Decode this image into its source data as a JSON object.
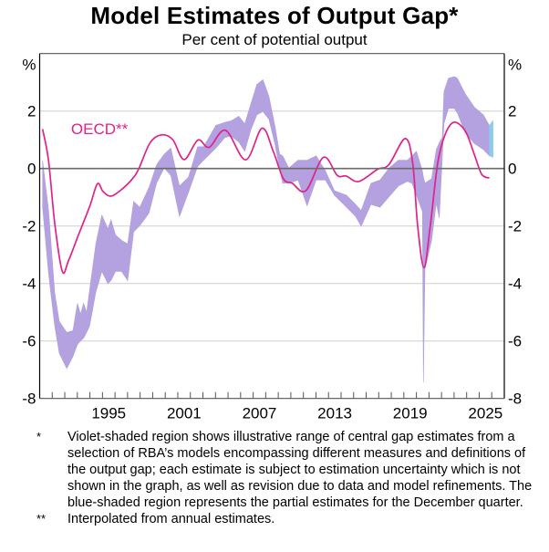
{
  "title": "Model Estimates of Output Gap*",
  "subtitle": "Per cent of potential output",
  "chart_data": {
    "type": "area",
    "title": "Model Estimates of Output Gap*",
    "subtitle": "Per cent of potential output",
    "xlabel": "",
    "ylabel": "%",
    "ylabel_right": "%",
    "xlim": [
      1990,
      2027
    ],
    "ylim": [
      -8,
      4
    ],
    "grid": true,
    "x_tick_labels": [
      "1995",
      "2001",
      "2007",
      "2013",
      "2019",
      "2025"
    ],
    "y_tick_labels": [
      "2",
      "0",
      "-2",
      "-4",
      "-6",
      "-8"
    ],
    "y_ticks": [
      2,
      0,
      -2,
      -4,
      -6,
      -8
    ],
    "colors": {
      "violet_band": "#b3a1e0",
      "blue_band": "#8ccbeb",
      "oecd_line": "#e0228a",
      "zero_line": "#6b6b6b",
      "grid": "#cfcfcf"
    },
    "series": [
      {
        "name": "Range of RBA model estimates",
        "kind": "band",
        "points": [
          [
            1990.23,
            -1.35,
            0.29
          ],
          [
            1990.71,
            -3.68,
            -1.46
          ],
          [
            1991.2,
            -5.48,
            -4.32
          ],
          [
            1991.56,
            -6.43,
            -5.32
          ],
          [
            1992.16,
            -6.96,
            -5.7
          ],
          [
            1992.65,
            -6.54,
            -5.64
          ],
          [
            1993.01,
            -6.12,
            -4.69
          ],
          [
            1993.25,
            -6.0,
            -5.06
          ],
          [
            1993.5,
            -5.9,
            -4.69
          ],
          [
            1993.74,
            -5.7,
            -5.0
          ],
          [
            1993.98,
            -5.48,
            -4.21
          ],
          [
            1994.47,
            -4.3,
            -2.62
          ],
          [
            1994.95,
            -3.58,
            -1.62
          ],
          [
            1995.43,
            -4.0,
            -2.1
          ],
          [
            1995.68,
            -3.9,
            -1.78
          ],
          [
            1996.04,
            -3.58,
            -2.31
          ],
          [
            1996.52,
            -3.58,
            -2.5
          ],
          [
            1997.01,
            -3.9,
            -2.62
          ],
          [
            1997.49,
            -2.2,
            -1.14
          ],
          [
            1997.97,
            -1.99,
            -1.35
          ],
          [
            1998.7,
            -1.56,
            -0.67
          ],
          [
            1999.31,
            -0.51,
            0.13
          ],
          [
            1999.91,
            0.02,
            0.5
          ],
          [
            2000.44,
            -0.24,
            0.71
          ],
          [
            2001.13,
            -1.67,
            -0.61
          ],
          [
            2001.85,
            -0.83,
            -0.3
          ],
          [
            2002.58,
            0.07,
            0.76
          ],
          [
            2003.06,
            0.29,
            0.76
          ],
          [
            2004.03,
            0.71,
            1.5
          ],
          [
            2004.76,
            1.08,
            1.61
          ],
          [
            2005.24,
            1.13,
            1.66
          ],
          [
            2005.85,
            0.92,
            1.82
          ],
          [
            2006.33,
            0.6,
            1.56
          ],
          [
            2006.81,
            1.34,
            2.24
          ],
          [
            2007.3,
            1.87,
            2.93
          ],
          [
            2007.78,
            1.98,
            3.09
          ],
          [
            2008.26,
            1.71,
            2.51
          ],
          [
            2008.75,
            0.82,
            1.45
          ],
          [
            2009.11,
            -0.03,
            0.5
          ],
          [
            2009.35,
            -0.51,
            0.44
          ],
          [
            2009.84,
            -0.51,
            0.02
          ],
          [
            2010.57,
            -0.4,
            0.29
          ],
          [
            2011.29,
            -1.3,
            0.29
          ],
          [
            2012.02,
            -0.4,
            0.44
          ],
          [
            2012.75,
            -0.4,
            -0.08
          ],
          [
            2013.47,
            -0.93,
            -0.77
          ],
          [
            2014.44,
            -1.35,
            -0.93
          ],
          [
            2015.16,
            -1.67,
            -1.25
          ],
          [
            2015.6,
            -2.01,
            -1.46
          ],
          [
            2016.38,
            -1.25,
            -0.51
          ],
          [
            2017.1,
            -1.35,
            -0.4
          ],
          [
            2017.83,
            -0.98,
            0.02
          ],
          [
            2018.56,
            -0.61,
            0.29
          ],
          [
            2019.28,
            -0.45,
            0.29
          ],
          [
            2019.64,
            -0.51,
            0.44
          ],
          [
            2020.0,
            -0.93,
            0.6
          ],
          [
            2020.48,
            -1.5,
            -0.08
          ],
          [
            2020.56,
            -7.44,
            -0.3
          ],
          [
            2020.68,
            -3.5,
            -0.51
          ],
          [
            2021.21,
            -2.5,
            -0.35
          ],
          [
            2021.58,
            -1.2,
            0.66
          ],
          [
            2021.82,
            -1.72,
            0.9
          ],
          [
            2022.06,
            0.4,
            1.08
          ],
          [
            2022.19,
            1.56,
            2.67
          ],
          [
            2022.55,
            2.09,
            3.14
          ],
          [
            2023.03,
            2.09,
            3.2
          ],
          [
            2023.27,
            1.93,
            3.14
          ],
          [
            2023.88,
            1.24,
            2.61
          ],
          [
            2024.6,
            0.87,
            2.14
          ],
          [
            2025.33,
            0.66,
            1.87
          ],
          [
            2025.81,
            0.44,
            1.5
          ]
        ]
      },
      {
        "name": "Partial estimates for the December quarter",
        "kind": "band",
        "points": [
          [
            2025.81,
            0.44,
            1.5
          ],
          [
            2026.1,
            0.39,
            1.66
          ]
        ]
      },
      {
        "name": "OECD**",
        "kind": "line",
        "points": [
          [
            1990.23,
            1.37
          ],
          [
            1990.7,
            0.3
          ],
          [
            1991.2,
            -1.9
          ],
          [
            1991.8,
            -3.58
          ],
          [
            1992.3,
            -3.2
          ],
          [
            1993.1,
            -2.3
          ],
          [
            1994.0,
            -1.3
          ],
          [
            1994.6,
            -0.53
          ],
          [
            1995.05,
            -0.8
          ],
          [
            1995.7,
            -0.96
          ],
          [
            1996.6,
            -0.7
          ],
          [
            1997.4,
            -0.35
          ],
          [
            1997.9,
            0.0
          ],
          [
            1998.8,
            0.9
          ],
          [
            1999.7,
            1.17
          ],
          [
            2000.6,
            1.0
          ],
          [
            2001.5,
            0.31
          ],
          [
            2002.6,
            0.99
          ],
          [
            2003.5,
            0.74
          ],
          [
            2004.8,
            1.33
          ],
          [
            2006.4,
            0.3
          ],
          [
            2007.7,
            1.4
          ],
          [
            2008.6,
            0.6
          ],
          [
            2009.4,
            -0.35
          ],
          [
            2010.1,
            -0.51
          ],
          [
            2011.2,
            -0.77
          ],
          [
            2012.6,
            0.39
          ],
          [
            2013.7,
            -0.24
          ],
          [
            2014.4,
            -0.26
          ],
          [
            2015.4,
            -0.45
          ],
          [
            2016.9,
            -0.03
          ],
          [
            2017.8,
            0.13
          ],
          [
            2019.1,
            1.04
          ],
          [
            2019.7,
            0.2
          ],
          [
            2020.1,
            -2.0
          ],
          [
            2020.6,
            -3.45
          ],
          [
            2021.1,
            -2.0
          ],
          [
            2021.7,
            0.2
          ],
          [
            2022.3,
            1.2
          ],
          [
            2023.0,
            1.61
          ],
          [
            2023.9,
            1.3
          ],
          [
            2024.6,
            0.5
          ],
          [
            2025.2,
            -0.2
          ],
          [
            2025.8,
            -0.33
          ]
        ]
      }
    ],
    "annotations": [
      {
        "text": "OECD**",
        "x": 1992.5,
        "y": 1.2
      }
    ]
  },
  "notes": [
    {
      "mark": "*",
      "text": "Violet-shaded region shows illustrative range of central gap estimates from a selection of RBA’s models encompassing different measures and definitions of the output gap; each estimate is subject to estimation uncertainty which is not shown in the graph, as well as revision due to data and model refinements. The blue-shaded region represents the partial estimates for the December quarter."
    },
    {
      "mark": "**",
      "text": "Interpolated from annual estimates."
    }
  ]
}
